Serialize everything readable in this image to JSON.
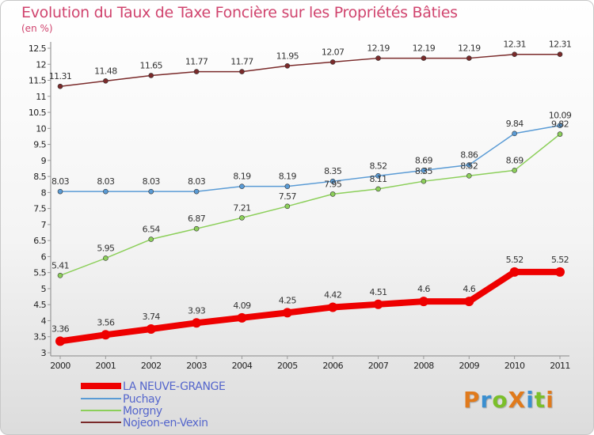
{
  "title": "Evolution du Taux de Taxe Foncière sur les Propriétés Bâties",
  "unit": "(en %)",
  "brand": {
    "text": "ProXiti",
    "letters": [
      "P",
      "r",
      "o",
      "X",
      "i",
      "t",
      "i"
    ],
    "colors": [
      "#e07a1c",
      "#3a8fd0",
      "#7bbf2a",
      "#e07a1c",
      "#3a8fd0",
      "#7bbf2a",
      "#e07a1c"
    ]
  },
  "chart_data": {
    "type": "line",
    "title": "Evolution du Taux de Taxe Foncière sur les Propriétés Bâties",
    "ylabel": "(en %)",
    "xlabel": "",
    "x": [
      "2000",
      "2001",
      "2002",
      "2003",
      "2004",
      "2005",
      "2006",
      "2007",
      "2008",
      "2009",
      "2010",
      "2011"
    ],
    "ylim": [
      3,
      12.5
    ],
    "yticks": [
      "3",
      "3.5",
      "4",
      "4.5",
      "5",
      "5.5",
      "6",
      "6.5",
      "7",
      "7.5",
      "8",
      "8.5",
      "9",
      "9.5",
      "10",
      "10.5",
      "11",
      "11.5",
      "12",
      "12.5"
    ],
    "legend_position": "bottom-left",
    "series": [
      {
        "name": "LA NEUVE-GRANGE",
        "color": "#ee0000",
        "width": 8,
        "values": [
          3.36,
          3.56,
          3.74,
          3.93,
          4.09,
          4.25,
          4.42,
          4.51,
          4.6,
          4.6,
          5.52,
          5.52
        ],
        "labels": [
          "3.36",
          "3.56",
          "3.74",
          "3.93",
          "4.09",
          "4.25",
          "4.42",
          "4.51",
          "4.6",
          "4.6",
          "5.52",
          "5.52"
        ]
      },
      {
        "name": "Puchay",
        "color": "#5a9bd5",
        "width": 1.5,
        "values": [
          8.03,
          8.03,
          8.03,
          8.03,
          8.19,
          8.19,
          8.35,
          8.52,
          8.69,
          8.86,
          9.84,
          10.09
        ],
        "labels": [
          "8.03",
          "8.03",
          "8.03",
          "8.03",
          "8.19",
          "8.19",
          "8.35",
          "8.52",
          "8.69",
          "8.86",
          "9.84",
          "10.09"
        ]
      },
      {
        "name": "Morgny",
        "color": "#8ccf5a",
        "width": 1.5,
        "values": [
          5.41,
          5.95,
          6.54,
          6.87,
          7.21,
          7.57,
          7.95,
          8.11,
          8.35,
          8.52,
          8.69,
          9.82
        ],
        "labels": [
          "5.41",
          "5.95",
          "6.54",
          "6.87",
          "7.21",
          "7.57",
          "7.95",
          "8.11",
          "8.35",
          "8.52",
          "8.69",
          "9.82"
        ]
      },
      {
        "name": "Nojeon-en-Vexin",
        "color": "#7a2a2a",
        "width": 1.5,
        "values": [
          11.31,
          11.48,
          11.65,
          11.77,
          11.77,
          11.95,
          12.07,
          12.19,
          12.19,
          12.19,
          12.31,
          12.31
        ],
        "labels": [
          "11.31",
          "11.48",
          "11.65",
          "11.77",
          "11.77",
          "11.95",
          "12.07",
          "12.19",
          "12.19",
          "12.19",
          "12.31",
          "12.31"
        ]
      }
    ]
  }
}
